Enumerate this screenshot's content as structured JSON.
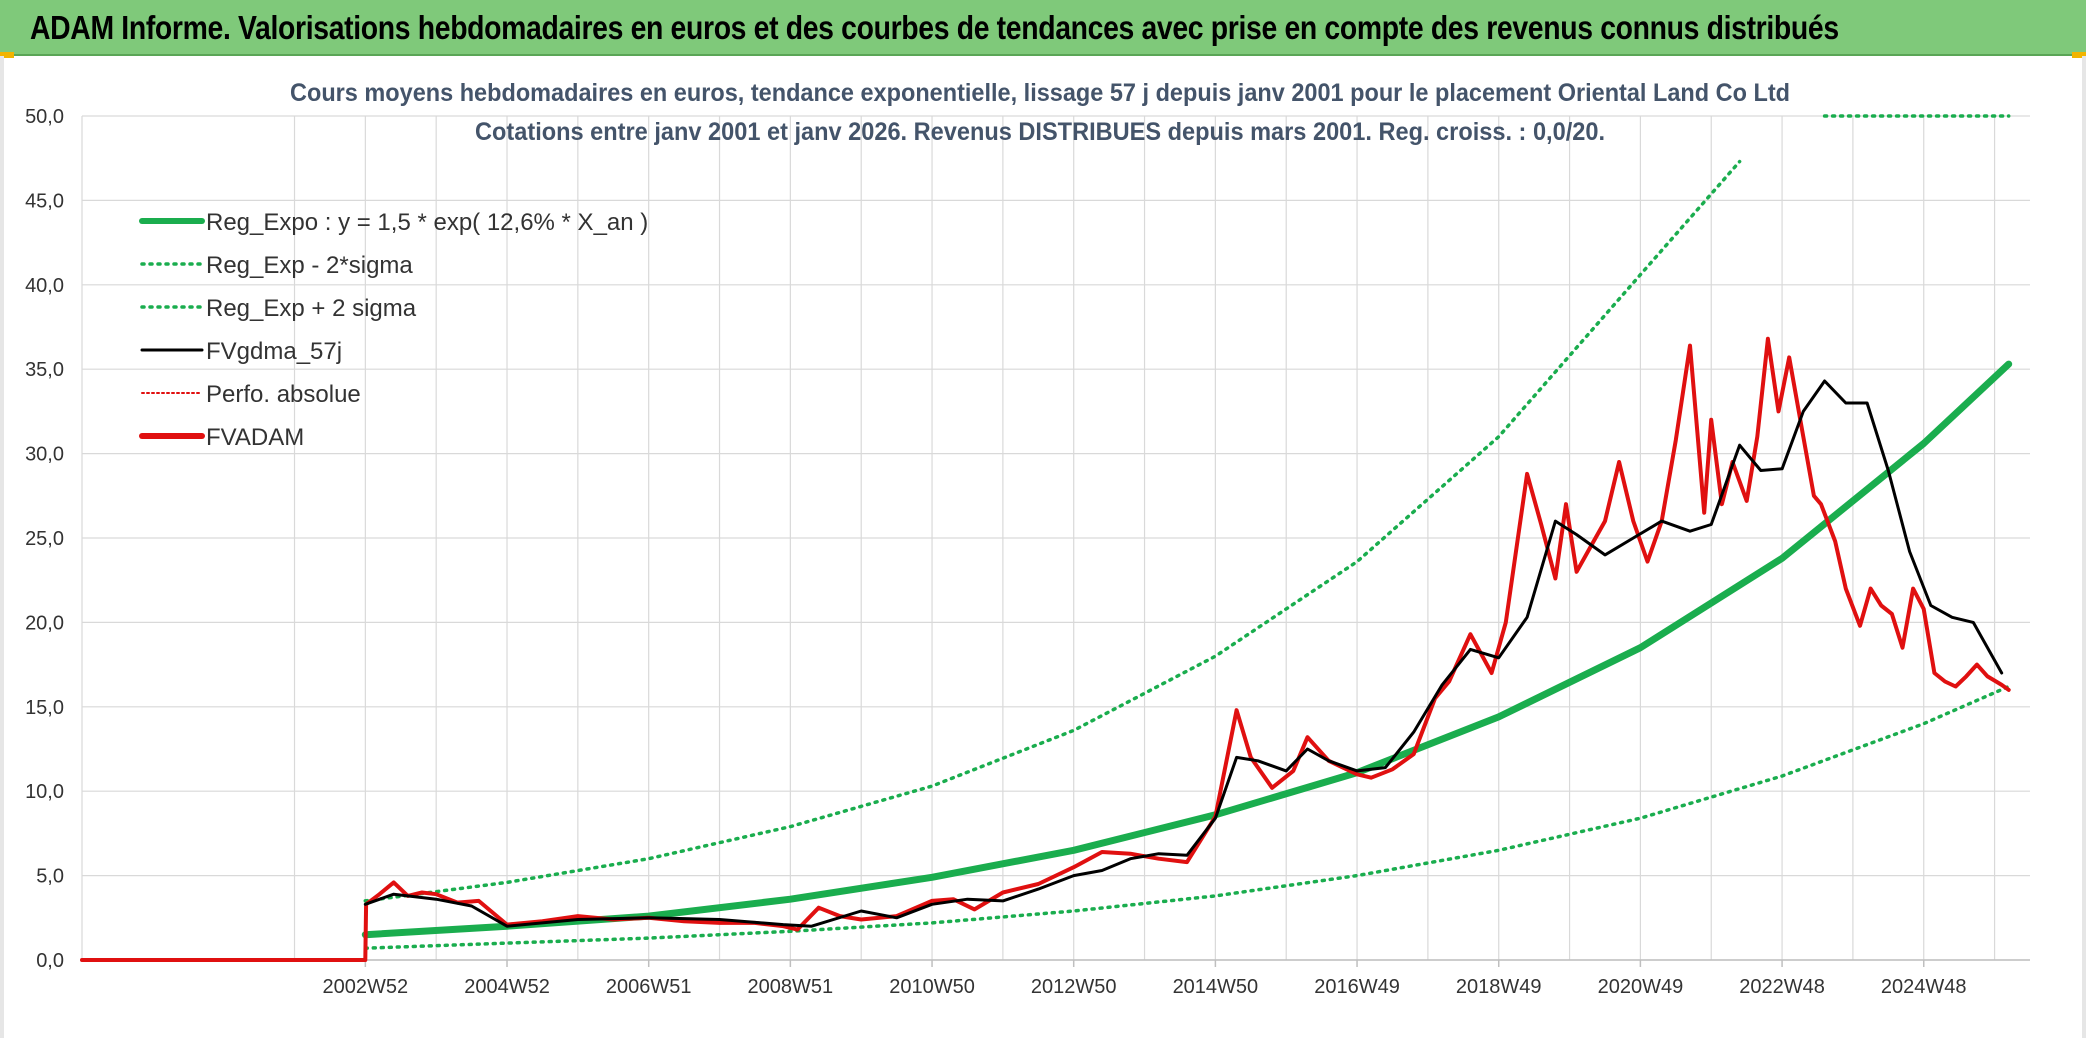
{
  "banner": {
    "title": "ADAM Informe. Valorisations hebdomadaires en euros et des courbes de tendances avec prise en compte des revenus connus distribués"
  },
  "colors": {
    "banner_bg": "#7fc97a",
    "trend": "#1aad4e",
    "smooth": "#000000",
    "fvadam": "#e01010",
    "perf": "#e01010",
    "grid": "#d9d9d9",
    "axis_text": "#333333",
    "title_text": "#44546a"
  },
  "chart_data": {
    "type": "line",
    "title": [
      "Cours moyens hebdomadaires en euros, tendance exponentielle, lissage 57 j depuis janv 2001 pour le placement Oriental Land Co Ltd",
      "Cotations entre janv 2001 et janv 2026. Revenus DISTRIBUES depuis mars 2001. Reg. croiss. : 0,0/20."
    ],
    "xlabel": "",
    "ylabel": "",
    "x_range": [
      1999.0,
      2026.5
    ],
    "ylim": [
      0,
      50
    ],
    "y_ticks": [
      "0,0",
      "5,0",
      "10,0",
      "15,0",
      "20,0",
      "25,0",
      "30,0",
      "35,0",
      "40,0",
      "45,0",
      "50,0"
    ],
    "x_ticks": [
      {
        "label": "2002W52",
        "x": 2003.0
      },
      {
        "label": "2004W52",
        "x": 2005.0
      },
      {
        "label": "2006W51",
        "x": 2007.0
      },
      {
        "label": "2008W51",
        "x": 2009.0
      },
      {
        "label": "2010W50",
        "x": 2011.0
      },
      {
        "label": "2012W50",
        "x": 2013.0
      },
      {
        "label": "2014W50",
        "x": 2015.0
      },
      {
        "label": "2016W49",
        "x": 2017.0
      },
      {
        "label": "2018W49",
        "x": 2019.0
      },
      {
        "label": "2020W49",
        "x": 2021.0
      },
      {
        "label": "2022W48",
        "x": 2023.0
      },
      {
        "label": "2024W48",
        "x": 2025.0
      }
    ],
    "grid": true,
    "legend_position": "top-left",
    "legend": [
      {
        "key": "reg_expo",
        "name": "Reg_Expo : y = 1,5 * exp( 12,6% *  X_an )",
        "style": "solid-thick",
        "color": "#1aad4e"
      },
      {
        "key": "reg_minus",
        "name": "Reg_Exp - 2*sigma",
        "style": "dotted",
        "color": "#1aad4e"
      },
      {
        "key": "reg_plus",
        "name": "Reg_Exp + 2 sigma",
        "style": "dotted",
        "color": "#1aad4e"
      },
      {
        "key": "fvgdma",
        "name": "FVgdma_57j",
        "style": "solid",
        "color": "#000000"
      },
      {
        "key": "perf",
        "name": "Perfo. absolue",
        "style": "dotted-thin",
        "color": "#e01010"
      },
      {
        "key": "fvadam",
        "name": "FVADAM",
        "style": "solid-thick",
        "color": "#e01010"
      }
    ],
    "series": [
      {
        "key": "reg_expo",
        "name": "Reg_Expo",
        "x": [
          2003.0,
          2005.0,
          2007.0,
          2009.0,
          2011.0,
          2013.0,
          2015.0,
          2017.0,
          2019.0,
          2021.0,
          2023.0,
          2025.0,
          2026.2
        ],
        "values": [
          1.5,
          2.0,
          2.6,
          3.6,
          4.9,
          6.5,
          8.6,
          11.1,
          14.4,
          18.5,
          23.8,
          30.6,
          35.3
        ]
      },
      {
        "key": "reg_minus",
        "name": "Reg_Exp - 2*sigma",
        "x": [
          2003.0,
          2005.0,
          2007.0,
          2009.0,
          2011.0,
          2013.0,
          2015.0,
          2017.0,
          2019.0,
          2021.0,
          2023.0,
          2025.0,
          2026.2
        ],
        "values": [
          0.7,
          1.0,
          1.3,
          1.7,
          2.2,
          2.9,
          3.8,
          5.0,
          6.5,
          8.4,
          10.9,
          14.0,
          16.2
        ]
      },
      {
        "key": "reg_plus",
        "name": "Reg_Exp + 2 sigma",
        "x": [
          2003.0,
          2005.0,
          2007.0,
          2009.0,
          2011.0,
          2013.0,
          2015.0,
          2017.0,
          2019.0,
          2021.0,
          2022.4
        ],
        "values": [
          3.5,
          4.6,
          6.0,
          7.9,
          10.3,
          13.6,
          18.0,
          23.6,
          31.0,
          40.6,
          47.3
        ]
      },
      {
        "key": "reg_plus_offscale",
        "name": "Reg_Exp + 2 sigma (au-delà de l'échelle)",
        "x": [
          2023.6,
          2026.2
        ],
        "values": [
          50.0,
          50.0
        ]
      },
      {
        "key": "fvgdma",
        "name": "FVgdma_57j",
        "x": [
          2003.0,
          2003.4,
          2004.0,
          2004.5,
          2005.0,
          2006.0,
          2007.0,
          2008.0,
          2008.9,
          2009.3,
          2010.0,
          2010.5,
          2011.0,
          2011.5,
          2012.0,
          2012.5,
          2013.0,
          2013.4,
          2013.8,
          2014.2,
          2014.6,
          2015.0,
          2015.3,
          2015.6,
          2016.0,
          2016.3,
          2016.6,
          2017.0,
          2017.4,
          2017.8,
          2018.2,
          2018.6,
          2019.0,
          2019.4,
          2019.8,
          2020.1,
          2020.5,
          2020.9,
          2021.3,
          2021.7,
          2022.0,
          2022.4,
          2022.7,
          2023.0,
          2023.3,
          2023.6,
          2023.9,
          2024.2,
          2024.5,
          2024.8,
          2025.1,
          2025.4,
          2025.7,
          2026.1
        ],
        "values": [
          3.3,
          3.9,
          3.6,
          3.2,
          2.0,
          2.4,
          2.5,
          2.4,
          2.1,
          2.0,
          2.9,
          2.5,
          3.3,
          3.6,
          3.5,
          4.2,
          5.0,
          5.3,
          6.0,
          6.3,
          6.2,
          8.4,
          12.0,
          11.8,
          11.2,
          12.5,
          11.8,
          11.2,
          11.4,
          13.5,
          16.3,
          18.4,
          17.9,
          20.3,
          26.0,
          25.2,
          24.0,
          25.0,
          26.0,
          25.4,
          25.8,
          30.5,
          29.0,
          29.1,
          32.5,
          34.3,
          33.0,
          33.0,
          29.0,
          24.2,
          21.0,
          20.3,
          20.0,
          17.0
        ]
      },
      {
        "key": "fvadam",
        "name": "FVADAM",
        "x": [
          1999.0,
          2003.0,
          2003.01,
          2003.2,
          2003.4,
          2003.6,
          2003.8,
          2004.0,
          2004.3,
          2004.6,
          2005.0,
          2005.5,
          2006.0,
          2006.5,
          2007.0,
          2007.5,
          2008.0,
          2008.5,
          2008.9,
          2009.1,
          2009.4,
          2009.7,
          2010.0,
          2010.5,
          2011.0,
          2011.3,
          2011.6,
          2012.0,
          2012.5,
          2013.0,
          2013.4,
          2013.8,
          2014.2,
          2014.6,
          2015.0,
          2015.3,
          2015.5,
          2015.8,
          2016.1,
          2016.3,
          2016.6,
          2017.0,
          2017.2,
          2017.5,
          2017.8,
          2018.1,
          2018.3,
          2018.6,
          2018.9,
          2019.1,
          2019.4,
          2019.6,
          2019.8,
          2019.95,
          2020.1,
          2020.3,
          2020.5,
          2020.7,
          2020.9,
          2021.1,
          2021.3,
          2021.5,
          2021.7,
          2021.9,
          2022.0,
          2022.15,
          2022.3,
          2022.5,
          2022.65,
          2022.8,
          2022.95,
          2023.1,
          2023.3,
          2023.45,
          2023.55,
          2023.75,
          2023.9,
          2024.1,
          2024.25,
          2024.4,
          2024.55,
          2024.7,
          2024.85,
          2025.0,
          2025.15,
          2025.3,
          2025.45,
          2025.6,
          2025.75,
          2025.9,
          2026.1,
          2026.2
        ],
        "values": [
          0.0,
          0.0,
          3.3,
          3.9,
          4.6,
          3.8,
          4.0,
          3.9,
          3.4,
          3.5,
          2.1,
          2.3,
          2.6,
          2.4,
          2.5,
          2.3,
          2.2,
          2.2,
          2.0,
          1.8,
          3.1,
          2.6,
          2.4,
          2.6,
          3.5,
          3.6,
          3.0,
          4.0,
          4.5,
          5.5,
          6.4,
          6.3,
          6.0,
          5.8,
          8.5,
          14.8,
          12.0,
          10.2,
          11.2,
          13.2,
          11.8,
          11.0,
          10.8,
          11.3,
          12.2,
          15.5,
          16.5,
          19.3,
          17.0,
          20.0,
          28.8,
          25.8,
          22.6,
          27.0,
          23.0,
          24.5,
          26.0,
          29.5,
          26.0,
          23.6,
          26.0,
          30.8,
          36.4,
          26.5,
          32.0,
          27.0,
          29.5,
          27.2,
          31.0,
          36.8,
          32.5,
          35.7,
          31.0,
          27.5,
          27.0,
          24.8,
          22.0,
          19.8,
          22.0,
          21.0,
          20.5,
          18.5,
          22.0,
          20.8,
          17.0,
          16.5,
          16.2,
          16.8,
          17.5,
          16.8,
          16.3,
          16.0
        ]
      }
    ]
  }
}
